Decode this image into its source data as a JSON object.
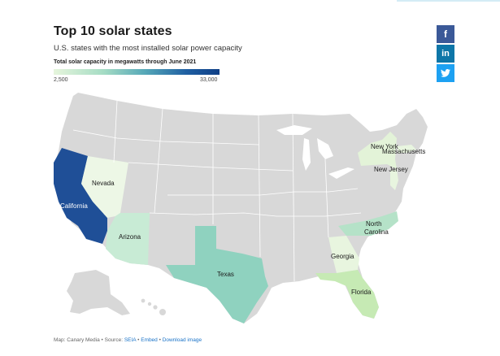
{
  "header": {
    "title": "Top 10 solar states",
    "subtitle": "U.S. states with the most installed solar power capacity"
  },
  "legend": {
    "title": "Total solar capacity in megawatts through June 2021",
    "min": "2,500",
    "max": "33,000",
    "colors": [
      "#e6f5dc",
      "#a5dcc4",
      "#56a8b8",
      "#1f5fa2",
      "#0f3f86"
    ]
  },
  "share": {
    "facebook": "f",
    "linkedin": "in",
    "twitter_icon": "twitter-icon"
  },
  "map": {
    "states": {
      "california": "California",
      "nevada": "Nevada",
      "arizona": "Arizona",
      "texas": "Texas",
      "georgia": "Georgia",
      "florida": "Florida",
      "north_carolina": "North\nCarolina",
      "new_york": "New York",
      "massachusetts": "Massachusetts",
      "new_jersey": "New Jersey"
    },
    "colors": {
      "base": "#d8d8d8",
      "border": "#ffffff",
      "california": "#1f4f97",
      "nevada": "#edf7e6",
      "arizona": "#c8ebd5",
      "texas": "#8fd2bf",
      "georgia": "#e8f5df",
      "florida": "#c6eab4",
      "north_carolina": "#b5e2c8",
      "new_york": "#e3f3d8",
      "massachusetts": "#e8f5df",
      "new_jersey": "#e8f5df"
    }
  },
  "footer": {
    "prefix": "Map: Canary Media • Source: ",
    "source": "SEIA",
    "sep1": " • ",
    "embed": "Embed",
    "sep2": " • ",
    "download": "Download image"
  }
}
